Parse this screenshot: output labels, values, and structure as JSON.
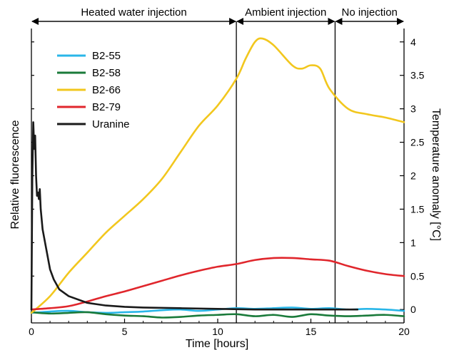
{
  "chart_data": {
    "type": "line",
    "xlabel": "Time [hours]",
    "ylabel_left": "Relative fluorescence",
    "ylabel_right": "Temperature anomaly [°C]",
    "xlim": [
      0,
      20
    ],
    "ylim_right": [
      -0.2,
      4.2
    ],
    "x_ticks": [
      "0",
      "5",
      "10",
      "15",
      "20"
    ],
    "y_ticks_right": [
      "0",
      "0.5",
      "1",
      "1.5",
      "2",
      "2.5",
      "3",
      "3.5",
      "4"
    ],
    "grid": false,
    "legend_position": "top-left",
    "phases": [
      {
        "label": "Heated water injection",
        "start": 0,
        "end": 11
      },
      {
        "label": "Ambient injection",
        "start": 11,
        "end": 16.3
      },
      {
        "label": "No injection",
        "start": 16.3,
        "end": 20
      }
    ],
    "phase_boundaries": [
      11,
      16.3
    ],
    "series": [
      {
        "name": "B2-55",
        "color": "#29b6e8",
        "axis": "right",
        "points": [
          [
            0,
            -0.05
          ],
          [
            1,
            -0.03
          ],
          [
            2,
            -0.02
          ],
          [
            3,
            -0.04
          ],
          [
            4,
            -0.05
          ],
          [
            5,
            -0.04
          ],
          [
            6,
            -0.03
          ],
          [
            7,
            -0.01
          ],
          [
            8,
            0.0
          ],
          [
            9,
            -0.02
          ],
          [
            10,
            0.0
          ],
          [
            11,
            0.02
          ],
          [
            12,
            0.01
          ],
          [
            13,
            0.02
          ],
          [
            14,
            0.03
          ],
          [
            15,
            0.01
          ],
          [
            16,
            0.02
          ],
          [
            17,
            0.0
          ],
          [
            18,
            0.01
          ],
          [
            19,
            0.0
          ],
          [
            20,
            -0.02
          ]
        ]
      },
      {
        "name": "B2-58",
        "color": "#1a7a3a",
        "axis": "right",
        "points": [
          [
            0,
            -0.04
          ],
          [
            1,
            -0.06
          ],
          [
            2,
            -0.05
          ],
          [
            3,
            -0.04
          ],
          [
            4,
            -0.07
          ],
          [
            5,
            -0.09
          ],
          [
            6,
            -0.1
          ],
          [
            7,
            -0.12
          ],
          [
            8,
            -0.11
          ],
          [
            9,
            -0.09
          ],
          [
            10,
            -0.08
          ],
          [
            11,
            -0.07
          ],
          [
            12,
            -0.1
          ],
          [
            13,
            -0.08
          ],
          [
            14,
            -0.11
          ],
          [
            15,
            -0.07
          ],
          [
            16,
            -0.09
          ],
          [
            17,
            -0.1
          ],
          [
            18,
            -0.09
          ],
          [
            19,
            -0.08
          ],
          [
            20,
            -0.1
          ]
        ]
      },
      {
        "name": "B2-66",
        "color": "#f2c71e",
        "axis": "right",
        "points": [
          [
            0,
            -0.05
          ],
          [
            1,
            0.2
          ],
          [
            2,
            0.55
          ],
          [
            3,
            0.85
          ],
          [
            4,
            1.15
          ],
          [
            5,
            1.4
          ],
          [
            6,
            1.65
          ],
          [
            7,
            1.95
          ],
          [
            8,
            2.35
          ],
          [
            9,
            2.75
          ],
          [
            10,
            3.05
          ],
          [
            11,
            3.45
          ],
          [
            11.5,
            3.75
          ],
          [
            12,
            4.0
          ],
          [
            12.4,
            4.05
          ],
          [
            13,
            3.95
          ],
          [
            14,
            3.65
          ],
          [
            14.5,
            3.6
          ],
          [
            15,
            3.65
          ],
          [
            15.5,
            3.6
          ],
          [
            16,
            3.3
          ],
          [
            17,
            3.0
          ],
          [
            18,
            2.92
          ],
          [
            19,
            2.87
          ],
          [
            20,
            2.8
          ]
        ]
      },
      {
        "name": "B2-79",
        "color": "#e0262c",
        "axis": "right",
        "points": [
          [
            0,
            0.0
          ],
          [
            1,
            0.02
          ],
          [
            2,
            0.05
          ],
          [
            3,
            0.12
          ],
          [
            4,
            0.2
          ],
          [
            5,
            0.27
          ],
          [
            6,
            0.35
          ],
          [
            7,
            0.43
          ],
          [
            8,
            0.51
          ],
          [
            9,
            0.58
          ],
          [
            10,
            0.64
          ],
          [
            11,
            0.68
          ],
          [
            12,
            0.74
          ],
          [
            13,
            0.77
          ],
          [
            14,
            0.77
          ],
          [
            15,
            0.75
          ],
          [
            16,
            0.73
          ],
          [
            17,
            0.65
          ],
          [
            18,
            0.58
          ],
          [
            19,
            0.53
          ],
          [
            20,
            0.5
          ]
        ]
      },
      {
        "name": "Uranine",
        "color": "#1a1a1a",
        "axis": "left",
        "points": [
          [
            0,
            0.0
          ],
          [
            0.05,
            2.0
          ],
          [
            0.1,
            2.8
          ],
          [
            0.15,
            2.4
          ],
          [
            0.2,
            2.6
          ],
          [
            0.25,
            2.0
          ],
          [
            0.3,
            1.7
          ],
          [
            0.35,
            1.75
          ],
          [
            0.4,
            1.65
          ],
          [
            0.45,
            1.8
          ],
          [
            0.5,
            1.5
          ],
          [
            0.6,
            1.2
          ],
          [
            0.8,
            0.9
          ],
          [
            1.0,
            0.6
          ],
          [
            1.2,
            0.45
          ],
          [
            1.5,
            0.3
          ],
          [
            2,
            0.2
          ],
          [
            3,
            0.1
          ],
          [
            4,
            0.06
          ],
          [
            5,
            0.04
          ],
          [
            6,
            0.03
          ],
          [
            8,
            0.02
          ],
          [
            10,
            0.01
          ],
          [
            12,
            0.0
          ],
          [
            14,
            0.0
          ],
          [
            17.5,
            0.0
          ]
        ]
      }
    ]
  }
}
